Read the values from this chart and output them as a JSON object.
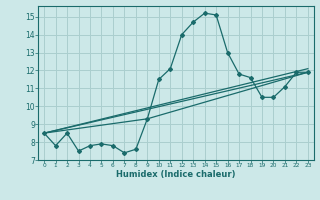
{
  "xlabel": "Humidex (Indice chaleur)",
  "ylabel": "",
  "xlim": [
    -0.5,
    23.5
  ],
  "ylim": [
    7,
    15.6
  ],
  "xticks": [
    0,
    1,
    2,
    3,
    4,
    5,
    6,
    7,
    8,
    9,
    10,
    11,
    12,
    13,
    14,
    15,
    16,
    17,
    18,
    19,
    20,
    21,
    22,
    23
  ],
  "yticks": [
    7,
    8,
    9,
    10,
    11,
    12,
    13,
    14,
    15
  ],
  "background_color": "#cce8e8",
  "grid_color": "#aacece",
  "line_color": "#1a6b6b",
  "line1_x": [
    0,
    1,
    2,
    3,
    4,
    5,
    6,
    7,
    8,
    9,
    10,
    11,
    12,
    13,
    14,
    15,
    16,
    17,
    18,
    19,
    20,
    21,
    22,
    23
  ],
  "line1_y": [
    8.5,
    7.8,
    8.5,
    7.5,
    7.8,
    7.9,
    7.8,
    7.4,
    7.6,
    9.3,
    11.5,
    12.1,
    14.0,
    14.7,
    15.2,
    15.1,
    13.0,
    11.8,
    11.6,
    10.5,
    10.5,
    11.1,
    11.9,
    11.9
  ],
  "line2_x": [
    0,
    23
  ],
  "line2_y": [
    8.5,
    11.9
  ],
  "line3_x": [
    0,
    23
  ],
  "line3_y": [
    8.5,
    12.1
  ],
  "line4_x": [
    0,
    9,
    23
  ],
  "line4_y": [
    8.5,
    9.3,
    11.9
  ]
}
